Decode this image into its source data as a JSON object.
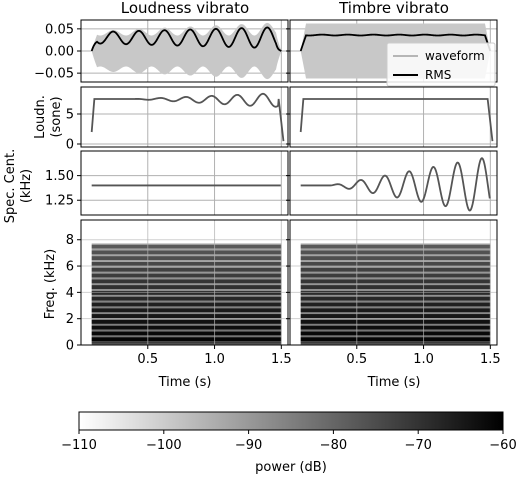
{
  "columns": [
    "Loudness vibrato",
    "Timbre vibrato"
  ],
  "ylabels": {
    "loudness": [
      "Loudn.",
      "(sone)"
    ],
    "centroid": [
      "Spec. Cent.",
      "(kHz)"
    ],
    "freq": "Freq. (kHz)"
  },
  "xlabel": "Time (s)",
  "colorbar": {
    "label": "power (dB)",
    "ticks": [
      "−110",
      "−100",
      "−90",
      "−80",
      "−70",
      "−60"
    ]
  },
  "legend": {
    "waveform": "waveform",
    "rms": "RMS"
  },
  "colors": {
    "waveform": "#c8c8c8",
    "rms": "#000000",
    "line": "#555555",
    "grid": "#b0b0b0"
  },
  "chart_data": [
    {
      "type": "area",
      "row": "waveform",
      "yticks": [
        "0.05",
        "0.00",
        "−0.05"
      ],
      "ylim": [
        -0.07,
        0.07
      ],
      "series": [
        {
          "name": "waveform"
        },
        {
          "name": "RMS"
        }
      ],
      "grid": true
    },
    {
      "type": "line",
      "row": "loudness",
      "yticks": [
        "5",
        "0"
      ],
      "ylim": [
        -0.5,
        9.5
      ],
      "series": [
        {
          "column": "Loudness vibrato",
          "base": 7.5,
          "vibrato_amplitude_max": 1.1
        },
        {
          "column": "Timbre vibrato",
          "base": 7.5,
          "vibrato_amplitude_max": 0
        }
      ],
      "grid": true
    },
    {
      "type": "line",
      "row": "centroid",
      "yticks": [
        "1.50",
        "1.25"
      ],
      "ylim": [
        1.1,
        1.75
      ],
      "series": [
        {
          "column": "Loudness vibrato",
          "base": 1.4,
          "vibrato_amplitude_max": 0
        },
        {
          "column": "Timbre vibrato",
          "base": 1.4,
          "vibrato_amplitude_max": 0.28
        }
      ],
      "grid": true
    },
    {
      "type": "heatmap",
      "row": "spectrogram",
      "yticks": [
        "8",
        "6",
        "4",
        "2",
        "0"
      ],
      "ylim": [
        0,
        9.5
      ],
      "xticks": [
        "0.5",
        "1.0",
        "1.5"
      ],
      "xlim": [
        0,
        1.55
      ],
      "harmonic_spacing_khz": 0.44,
      "harmonics_up_to_khz": 7.7
    }
  ]
}
